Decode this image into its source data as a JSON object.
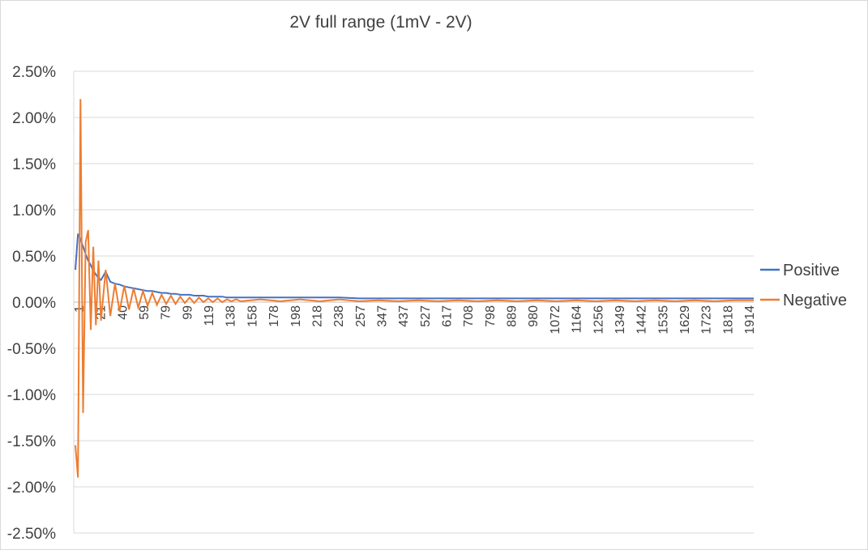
{
  "chart_data": {
    "type": "line",
    "title": "2V full range (1mV - 2V)",
    "xlabel": "",
    "ylabel": "",
    "ylim": [
      -0.025,
      0.025
    ],
    "y_ticks": [
      "2.50%",
      "2.00%",
      "1.50%",
      "1.00%",
      "0.50%",
      "0.00%",
      "-0.50%",
      "-1.00%",
      "-1.50%",
      "-2.00%",
      "-2.50%"
    ],
    "x_tick_labels": [
      "1",
      "21",
      "40",
      "59",
      "79",
      "99",
      "119",
      "138",
      "158",
      "178",
      "198",
      "218",
      "238",
      "257",
      "347",
      "437",
      "527",
      "617",
      "708",
      "798",
      "889",
      "980",
      "1072",
      "1164",
      "1256",
      "1349",
      "1442",
      "1535",
      "1629",
      "1723",
      "1818",
      "1914"
    ],
    "grid": true,
    "legend_position": "right",
    "series": [
      {
        "name": "Positive",
        "color": "#4472c4",
        "values": [
          0.0035,
          0.0074,
          0.0068,
          0.006,
          0.0052,
          0.0045,
          0.004,
          0.0034,
          0.003,
          0.0026,
          0.0024,
          0.0033,
          0.0022,
          0.002,
          0.0019,
          0.0017,
          0.0016,
          0.0015,
          0.0014,
          0.0013,
          0.0012,
          0.0012,
          0.0011,
          0.001,
          0.001,
          0.0009,
          0.0009,
          0.0008,
          0.0008,
          0.0008,
          0.0007,
          0.0007,
          0.0007,
          0.0006,
          0.0006,
          0.0006,
          0.0006,
          0.0005,
          0.0005,
          0.0005,
          0.0005,
          0.0005,
          0.0005,
          0.0005,
          0.0005,
          0.0005,
          0.0004,
          0.0004,
          0.0004,
          0.0004,
          0.0004,
          0.0004,
          0.0004,
          0.0004,
          0.0004,
          0.0004,
          0.0004,
          0.0004,
          0.0004,
          0.0004,
          0.0004,
          0.0004,
          0.0004,
          0.0004,
          0.0004,
          0.0004
        ]
      },
      {
        "name": "Negative",
        "color": "#ed7d31",
        "values": [
          -0.0155,
          -0.019,
          0.022,
          -0.012,
          0.0065,
          0.0078,
          -0.003,
          0.006,
          -0.0025,
          0.0045,
          -0.002,
          0.0035,
          -0.0015,
          0.002,
          -0.001,
          0.0018,
          -0.0008,
          0.0015,
          -0.0006,
          0.0012,
          -0.0004,
          0.001,
          -0.0003,
          0.0008,
          -0.0002,
          0.0007,
          -0.0002,
          0.0006,
          -0.0001,
          0.0005,
          -0.0001,
          0.0005,
          0.0,
          0.0004,
          0.0,
          0.0004,
          0.0,
          0.0003,
          0.0001,
          0.0003,
          0.0001,
          0.0003,
          0.0001,
          0.0003,
          0.0001,
          0.0003,
          0.0001,
          0.0002,
          0.0001,
          0.0002,
          0.0001,
          0.0002,
          0.0001,
          0.0002,
          0.0001,
          0.0002,
          0.0001,
          0.0002,
          0.0001,
          0.0002,
          0.0001,
          0.0002,
          0.0001,
          0.0002,
          0.0001,
          0.0002
        ]
      }
    ]
  }
}
